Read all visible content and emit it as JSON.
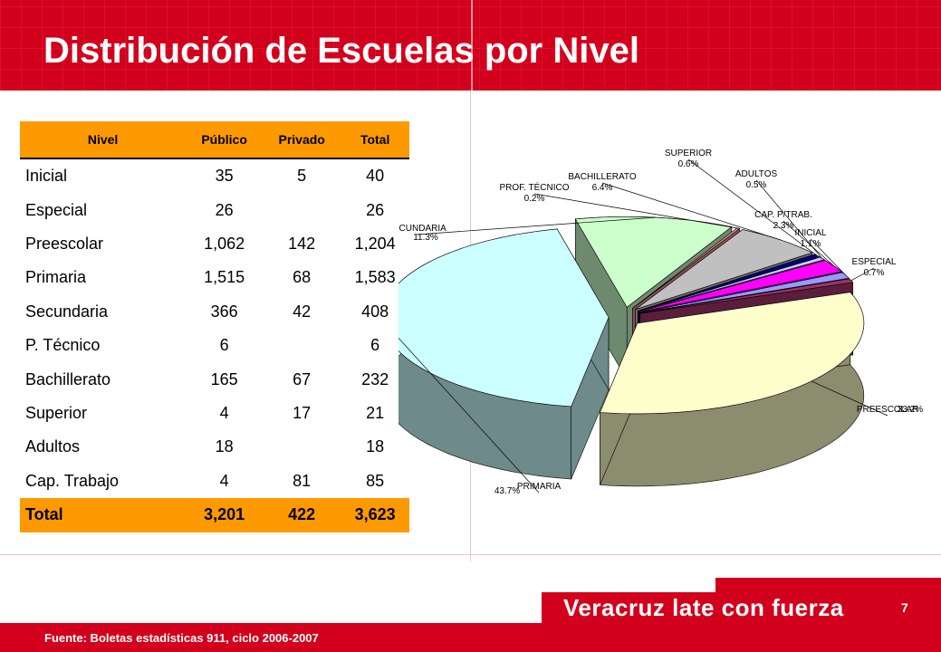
{
  "title": "Distribución de Escuelas por Nivel",
  "table": {
    "headers": [
      "Nivel",
      "Público",
      "Privado",
      "Total"
    ],
    "rows": [
      [
        "Inicial",
        "35",
        "5",
        "40"
      ],
      [
        "Especial",
        "26",
        "",
        "26"
      ],
      [
        "Preescolar",
        "1,062",
        "142",
        "1,204"
      ],
      [
        "Primaria",
        "1,515",
        "68",
        "1,583"
      ],
      [
        "Secundaria",
        "366",
        "42",
        "408"
      ],
      [
        "P. Técnico",
        "6",
        "",
        "6"
      ],
      [
        "Bachillerato",
        "165",
        "67",
        "232"
      ],
      [
        "Superior",
        "4",
        "17",
        "21"
      ],
      [
        "Adultos",
        "18",
        "",
        "18"
      ],
      [
        "Cap. Trabajo",
        "4",
        "81",
        "85"
      ]
    ],
    "total": [
      "Total",
      "3,201",
      "422",
      "3,623"
    ]
  },
  "chart_data": {
    "type": "pie",
    "slices": [
      {
        "label": "PREESCOLAR",
        "pct_label": "33.2%",
        "value": 33.2,
        "color": "#ffffcc",
        "side": "#8c8c6e"
      },
      {
        "label": "PRIMARIA",
        "pct_label": "43.7%",
        "value": 43.7,
        "color": "#ccffff",
        "side": "#6e8a8a"
      },
      {
        "label": "SECUNDARIA",
        "pct_label": "11.3%",
        "value": 11.3,
        "color": "#ccffcc",
        "side": "#6e8a6e"
      },
      {
        "label": "PROF. TÉCNICO",
        "pct_label": "0.2%",
        "value": 0.2,
        "color": "#ff9999",
        "side": "#8a5252"
      },
      {
        "label": "BACHILLERATO",
        "pct_label": "6.4%",
        "value": 6.4,
        "color": "#c0c0c0",
        "side": "#6e6e6e"
      },
      {
        "label": "SUPERIOR",
        "pct_label": "0.6%",
        "value": 0.6,
        "color": "#000080",
        "side": "#000050"
      },
      {
        "label": "ADULTOS",
        "pct_label": "0.5%",
        "value": 0.5,
        "color": "#ccccff",
        "side": "#6e6e8a"
      },
      {
        "label": "CAP. P/TRAB.",
        "pct_label": "2.3%",
        "value": 2.3,
        "color": "#ff00ff",
        "side": "#8a008a"
      },
      {
        "label": "INICIAL",
        "pct_label": "1.1%",
        "value": 1.1,
        "color": "#9999ff",
        "side": "#52528a"
      },
      {
        "label": "ESPECIAL",
        "pct_label": "0.7%",
        "value": 0.7,
        "color": "#993366",
        "side": "#5a1e3c"
      }
    ]
  },
  "footer": {
    "source": "Fuente: Boletas estadísticas 911, ciclo 2006-2007",
    "slogan": "Veracruz late con fuerza",
    "page_number": "7"
  }
}
